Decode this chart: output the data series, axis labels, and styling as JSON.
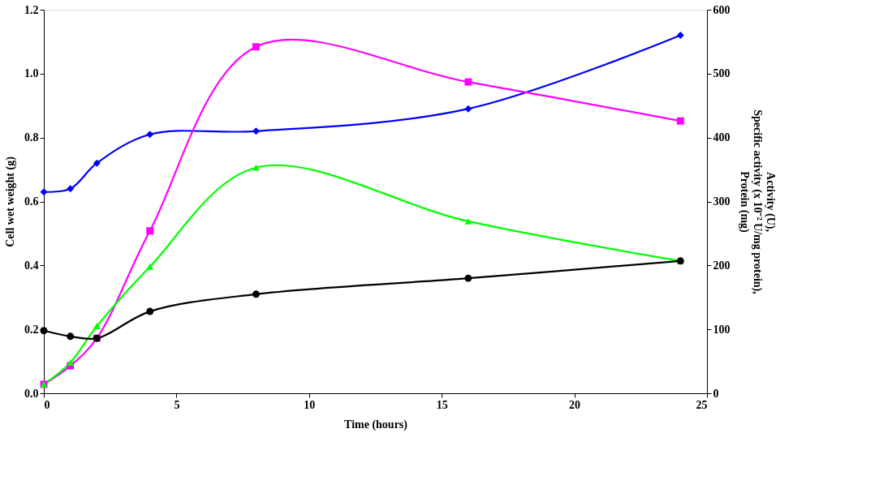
{
  "chart_data": {
    "type": "line",
    "xlabel": "Time (hours)",
    "ylabel": "Cell wet weight (g)",
    "y2label": "Activity (U),\nSpecific activity (x 10⁻² U/mg protein),\nProtein (mg)",
    "x": [
      0,
      1,
      2,
      4,
      8,
      16,
      24
    ],
    "xlim": [
      0,
      25
    ],
    "xticks": [
      0,
      5,
      10,
      15,
      20,
      25
    ],
    "ylim": [
      0,
      1.2
    ],
    "yticks": [
      {
        "value": 0,
        "label": "0.0"
      },
      0.2,
      0.4,
      0.6,
      0.8,
      {
        "value": 1,
        "label": "1.0"
      },
      1.2
    ],
    "y2lim": [
      0,
      600
    ],
    "y2ticks": [
      0,
      100,
      200,
      300,
      400,
      500,
      600
    ],
    "line_style": "solid",
    "series": [
      {
        "color": "#0000ff",
        "marker": "diamond",
        "values": [
          0.63,
          0.64,
          0.72,
          0.81,
          0.82,
          0.89,
          1.12
        ]
      },
      {
        "color": "#ff00ff",
        "marker": "square",
        "axis": "y2",
        "values": [
          14,
          43,
          86,
          254,
          542,
          487,
          426
        ]
      },
      {
        "color": "#00ff00",
        "marker": "triangle",
        "axis": "y2",
        "values": [
          14,
          48,
          105,
          198,
          353,
          269,
          207
        ]
      },
      {
        "color": "#000000",
        "marker": "circle",
        "axis": "y2",
        "values": [
          98,
          89,
          86,
          128,
          155,
          180,
          207
        ]
      }
    ]
  }
}
